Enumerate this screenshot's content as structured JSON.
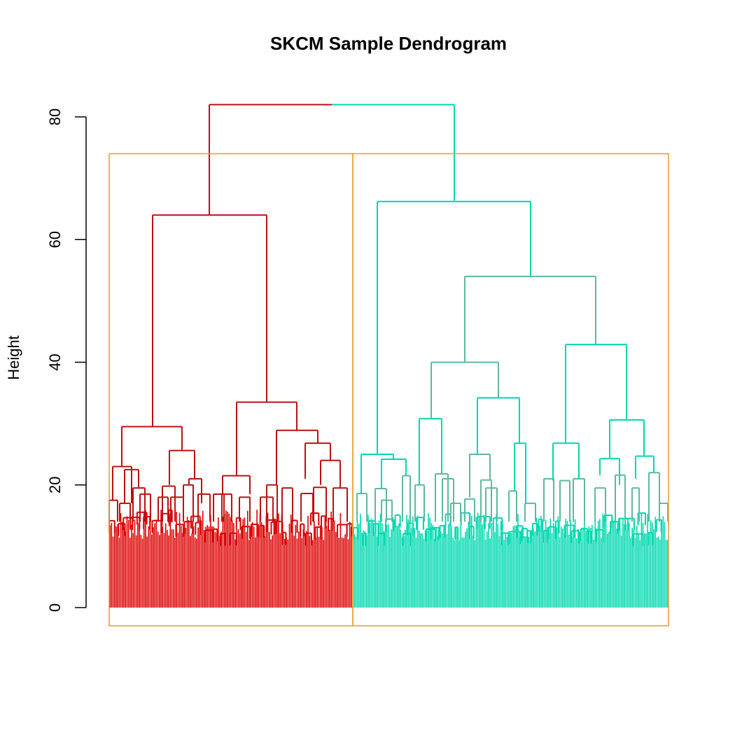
{
  "chart_data": {
    "type": "dendrogram",
    "title": "SKCM Sample Dendrogram",
    "xlabel": "",
    "ylabel": "Height",
    "ylim": [
      0,
      80
    ],
    "yticks": [
      0,
      20,
      40,
      60,
      80
    ],
    "root_height": 82,
    "cut_height": 74,
    "clusters": [
      {
        "color": "#dd0000",
        "branch_color": "#bb1111",
        "merge_heights": [
          64,
          29.5,
          33.5,
          26,
          23,
          21.5,
          29,
          27,
          24,
          20
        ]
      },
      {
        "color": "#00d8b0",
        "branch_color": "#5fb8a0",
        "merge_heights": [
          66,
          54,
          43,
          40,
          34,
          31,
          27,
          25,
          30.5,
          26.8,
          25
        ]
      }
    ],
    "colors": {
      "cluster_box": "#e8a23a",
      "axis": "#000000"
    }
  }
}
